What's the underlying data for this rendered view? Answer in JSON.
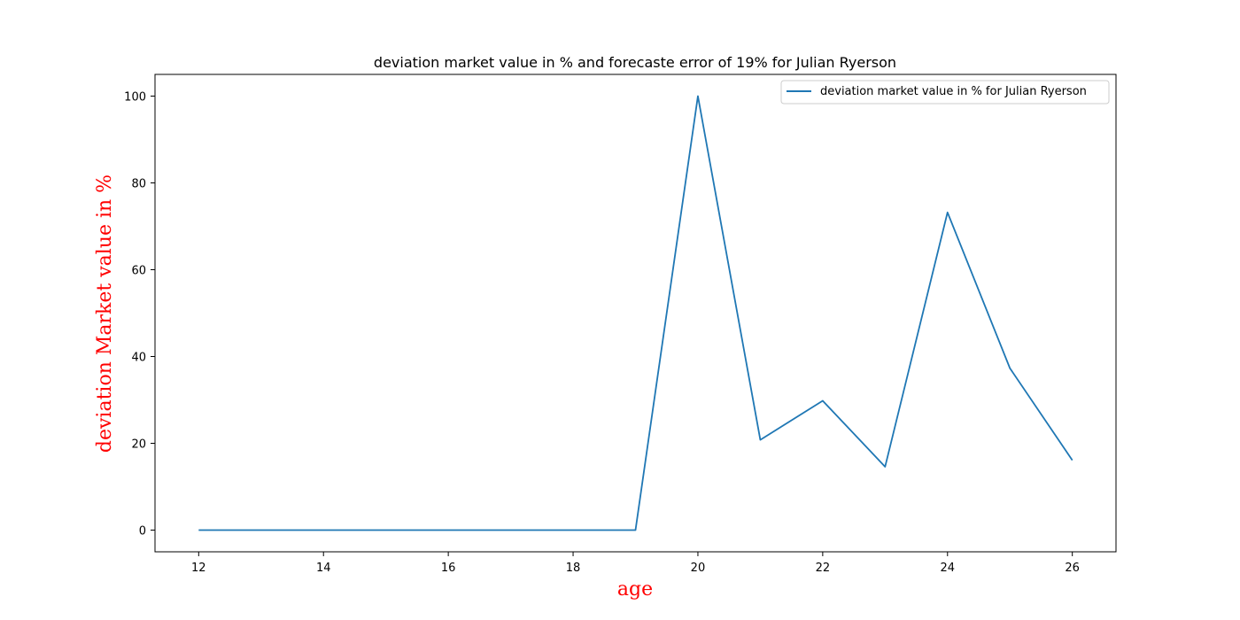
{
  "chart_data": {
    "type": "line",
    "title": "deviation market value in % and forecaste error of 19% for Julian Ryerson",
    "xlabel": "age",
    "ylabel": "deviation Market value in %",
    "label_color": "#ff0000",
    "line_color": "#1f77b4",
    "xlim": [
      11.3,
      26.7
    ],
    "ylim": [
      -5,
      105
    ],
    "xticks": [
      12,
      14,
      16,
      18,
      20,
      22,
      24,
      26
    ],
    "yticks": [
      0,
      20,
      40,
      60,
      80,
      100
    ],
    "grid": false,
    "legend_position": "top-right",
    "series": [
      {
        "name": "deviation market value in % for Julian Ryerson",
        "x": [
          12,
          13,
          14,
          15,
          16,
          17,
          18,
          19,
          20,
          21,
          22,
          23,
          24,
          25,
          26
        ],
        "y": [
          0,
          0,
          0,
          0,
          0,
          0,
          0,
          0,
          100,
          20.8,
          29.8,
          14.6,
          73.2,
          37.3,
          16.1
        ]
      }
    ]
  }
}
